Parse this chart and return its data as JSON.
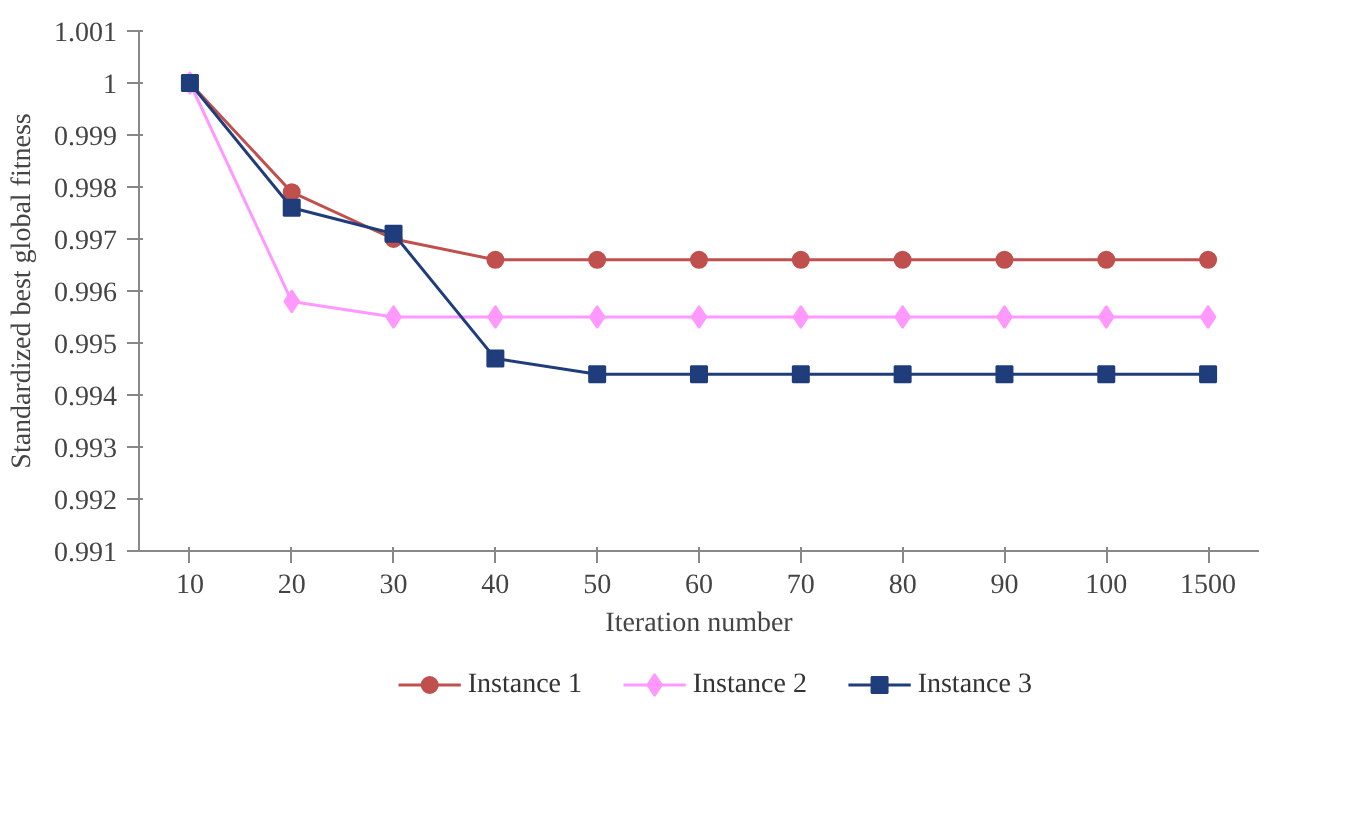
{
  "chart_data": {
    "type": "line",
    "xlabel": "Iteration number",
    "ylabel": "Standardized best global fitness",
    "categories": [
      "10",
      "20",
      "30",
      "40",
      "50",
      "60",
      "70",
      "80",
      "90",
      "100",
      "1500"
    ],
    "ylim": [
      0.991,
      1.001
    ],
    "yticks": [
      0.991,
      0.992,
      0.993,
      0.994,
      0.995,
      0.996,
      0.997,
      0.998,
      0.999,
      {
        "value": 1,
        "label": "1"
      },
      1.001
    ],
    "grid": false,
    "legend": "bottom",
    "line_style": "solid",
    "series": [
      {
        "name": "Instance 1",
        "color": "#c0504d",
        "marker": "circle",
        "values": [
          1,
          0.9979,
          0.997,
          0.9966,
          0.9966,
          0.9966,
          0.9966,
          0.9966,
          0.9966,
          0.9966,
          0.9966
        ]
      },
      {
        "name": "Instance 2",
        "color": "#ff99ff",
        "marker": "diamond",
        "values": [
          1,
          0.9958,
          0.9955,
          0.9955,
          0.9955,
          0.9955,
          0.9955,
          0.9955,
          0.9955,
          0.9955,
          0.9955
        ]
      },
      {
        "name": "Instance 3",
        "color": "#1f3d7a",
        "marker": "square",
        "values": [
          1,
          0.9976,
          0.9971,
          0.9947,
          0.9944,
          0.9944,
          0.9944,
          0.9944,
          0.9944,
          0.9944,
          0.9944
        ]
      }
    ]
  }
}
